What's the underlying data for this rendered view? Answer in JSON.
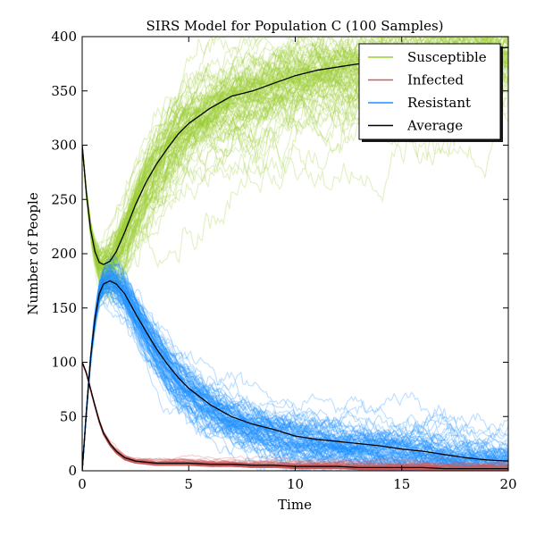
{
  "chart_data": {
    "type": "line",
    "title": "SIRS Model for Population C (100 Samples)",
    "xlabel": "Time",
    "ylabel": "Number of People",
    "xlim": [
      0,
      20
    ],
    "ylim": [
      0,
      400
    ],
    "xticks": [
      0,
      5,
      10,
      15,
      20
    ],
    "yticks": [
      0,
      50,
      100,
      150,
      200,
      250,
      300,
      350,
      400
    ],
    "grid": false,
    "legend_position": "top-right",
    "sample_count": 100,
    "legend": [
      {
        "label": "Susceptible",
        "color": "#9acd32"
      },
      {
        "label": "Infected",
        "color": "#cd5c5c"
      },
      {
        "label": "Resistant",
        "color": "#1e90ff"
      },
      {
        "label": "Average",
        "color": "#000000"
      }
    ],
    "series": [
      {
        "name": "Susceptible",
        "role": "average",
        "color": "#9acd32",
        "x": [
          0,
          0.2,
          0.4,
          0.6,
          0.8,
          1,
          1.3,
          1.6,
          2,
          2.5,
          3,
          3.5,
          4,
          4.5,
          5,
          6,
          7,
          8,
          9,
          10,
          11,
          12,
          13,
          14,
          15,
          16,
          17,
          18,
          19,
          20
        ],
        "y": [
          300,
          255,
          222,
          202,
          192,
          190,
          193,
          202,
          220,
          245,
          266,
          283,
          297,
          310,
          320,
          334,
          345,
          350,
          357,
          364,
          369,
          372,
          375,
          378,
          382,
          385,
          387,
          388,
          389,
          390
        ]
      },
      {
        "name": "Infected",
        "role": "average",
        "color": "#cd5c5c",
        "x": [
          0,
          0.2,
          0.4,
          0.6,
          0.8,
          1,
          1.3,
          1.6,
          2,
          2.5,
          3,
          3.5,
          4,
          4.5,
          5,
          6,
          7,
          8,
          9,
          10,
          11,
          12,
          13,
          14,
          15,
          16,
          17,
          18,
          19,
          20
        ],
        "y": [
          100,
          90,
          75,
          60,
          46,
          35,
          25,
          18,
          12,
          9,
          8,
          7,
          7,
          7,
          7,
          6,
          6,
          5,
          5,
          4,
          4,
          4,
          3,
          3,
          3,
          3,
          2,
          2,
          2,
          2
        ]
      },
      {
        "name": "Resistant",
        "role": "average",
        "color": "#1e90ff",
        "x": [
          0,
          0.2,
          0.4,
          0.6,
          0.8,
          1,
          1.3,
          1.6,
          2,
          2.5,
          3,
          3.5,
          4,
          4.5,
          5,
          6,
          7,
          8,
          9,
          10,
          11,
          12,
          13,
          14,
          15,
          16,
          17,
          18,
          19,
          20
        ],
        "y": [
          0,
          55,
          105,
          140,
          163,
          172,
          175,
          172,
          163,
          145,
          128,
          112,
          98,
          86,
          76,
          61,
          50,
          43,
          38,
          32,
          29,
          27,
          25,
          23,
          20,
          18,
          15,
          12,
          10,
          9
        ]
      }
    ]
  }
}
